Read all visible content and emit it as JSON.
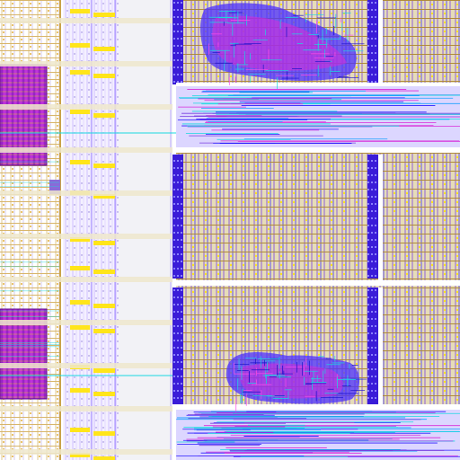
{
  "view": {
    "kind": "ic-layout-view",
    "layers": [
      {
        "name": "metal1",
        "color": "#7a3fe0"
      },
      {
        "name": "metal2",
        "color": "#2a1cff"
      },
      {
        "name": "metal3",
        "color": "#d82ad8"
      },
      {
        "name": "poly",
        "color": "#c8c8ff"
      },
      {
        "name": "via",
        "color": "#19d8e0"
      },
      {
        "name": "cell-fill",
        "color": "#e9e2c6"
      },
      {
        "name": "pin",
        "color": "#ffe51a"
      },
      {
        "name": "power-rail",
        "color": "#c9a24a"
      }
    ],
    "regions": [
      {
        "name": "left-macro-column"
      },
      {
        "name": "memory-block-top-left"
      },
      {
        "name": "memory-block-bottom-left"
      },
      {
        "name": "io-channel"
      },
      {
        "name": "standard-cell-array-top"
      },
      {
        "name": "standard-cell-array-mid"
      },
      {
        "name": "standard-cell-array-bottom"
      },
      {
        "name": "routing-congestion-top"
      },
      {
        "name": "routing-congestion-bottom"
      },
      {
        "name": "horizontal-bus-top"
      },
      {
        "name": "horizontal-bus-bottom"
      }
    ]
  }
}
